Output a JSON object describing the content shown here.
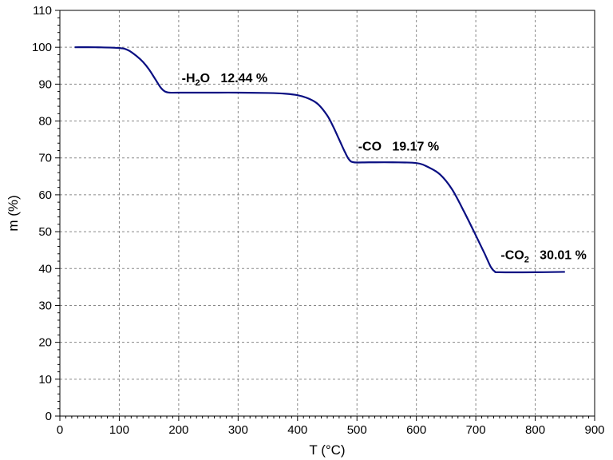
{
  "chart_data": {
    "type": "line",
    "xlabel": "T (°C)",
    "ylabel": "m (%)",
    "xlim": [
      0,
      900
    ],
    "ylim": [
      0,
      110
    ],
    "x_ticks": [
      "0",
      "100",
      "200",
      "300",
      "400",
      "500",
      "600",
      "700",
      "800",
      "900"
    ],
    "y_ticks": [
      "0",
      "10",
      "20",
      "30",
      "40",
      "50",
      "60",
      "70",
      "80",
      "90",
      "100",
      "110"
    ],
    "x_tick_values": [
      0,
      100,
      200,
      300,
      400,
      500,
      600,
      700,
      800,
      900
    ],
    "y_tick_values": [
      0,
      10,
      20,
      30,
      40,
      50,
      60,
      70,
      80,
      90,
      100,
      110
    ],
    "grid": true,
    "series": [
      {
        "color": "#0a0f82",
        "x": [
          25,
          60,
          100,
          115,
          130,
          140,
          150,
          160,
          170,
          177,
          185,
          200,
          250,
          300,
          350,
          380,
          400,
          420,
          435,
          450,
          460,
          470,
          480,
          487,
          495,
          520,
          560,
          600,
          620,
          640,
          660,
          680,
          700,
          715,
          725,
          732,
          740,
          800,
          850
        ],
        "y": [
          100,
          100,
          99.8,
          99.2,
          97.5,
          96,
          94,
          91.5,
          89,
          88,
          87.7,
          87.7,
          87.7,
          87.7,
          87.6,
          87.4,
          87,
          86,
          84.5,
          81.5,
          78.5,
          75,
          71.5,
          69.5,
          68.8,
          68.8,
          68.8,
          68.6,
          67.5,
          65.5,
          61.5,
          55.5,
          49,
          44,
          40.5,
          39.2,
          39,
          39,
          39.1
        ]
      }
    ],
    "annotations": [
      {
        "prefix": "-H",
        "sub": "2",
        "suffix": "O",
        "value": "12.44 %",
        "x": 205,
        "y": 90.5
      },
      {
        "prefix": "-CO",
        "sub": "",
        "suffix": "",
        "value": "19.17 %",
        "x": 502,
        "y": 72
      },
      {
        "prefix": "-CO",
        "sub": "2",
        "suffix": "",
        "value": "30.01 %",
        "x": 742,
        "y": 42.5
      }
    ]
  }
}
